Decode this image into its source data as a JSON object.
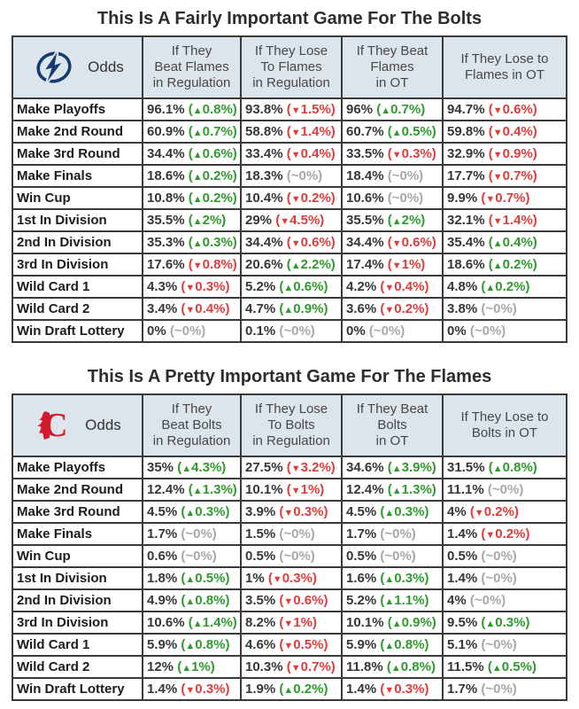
{
  "colors": {
    "increase_green": "#2f9b2f",
    "decrease_red": "#e13c3c",
    "no_change_gray": "#a8a8a8",
    "header_background": "#dce5ec",
    "table_border": "#3a3a3a",
    "bolts_logo_navy": "#173a70",
    "flames_logo_red": "#d31a2a"
  },
  "chart_data": [
    {
      "type": "table",
      "team": "Bolts",
      "title": "This Is A Fairly Important Game For The Bolts",
      "odds_label": "Odds",
      "logo_icon": "lightning-logo",
      "columns": [
        "If They\nBeat Flames\nin Regulation",
        "If They Lose\nTo Flames\nin Regulation",
        "If They Beat\nFlames\nin OT",
        "If They Lose to\nFlames in OT"
      ],
      "rows": [
        {
          "label": "Make Playoffs",
          "cells": [
            {
              "v": "96.1%",
              "c": "0.8%",
              "d": "up"
            },
            {
              "v": "93.8%",
              "c": "1.5%",
              "d": "down"
            },
            {
              "v": "96%",
              "c": "0.7%",
              "d": "up"
            },
            {
              "v": "94.7%",
              "c": "0.6%",
              "d": "down"
            }
          ]
        },
        {
          "label": "Make 2nd Round",
          "cells": [
            {
              "v": "60.9%",
              "c": "0.7%",
              "d": "up"
            },
            {
              "v": "58.8%",
              "c": "1.4%",
              "d": "down"
            },
            {
              "v": "60.7%",
              "c": "0.5%",
              "d": "up"
            },
            {
              "v": "59.8%",
              "c": "0.4%",
              "d": "down"
            }
          ]
        },
        {
          "label": "Make 3rd Round",
          "cells": [
            {
              "v": "34.4%",
              "c": "0.6%",
              "d": "up"
            },
            {
              "v": "33.4%",
              "c": "0.4%",
              "d": "down"
            },
            {
              "v": "33.5%",
              "c": "0.3%",
              "d": "down"
            },
            {
              "v": "32.9%",
              "c": "0.9%",
              "d": "down"
            }
          ]
        },
        {
          "label": "Make Finals",
          "cells": [
            {
              "v": "18.6%",
              "c": "0.2%",
              "d": "up"
            },
            {
              "v": "18.3%",
              "c": "0%",
              "d": "flat"
            },
            {
              "v": "18.4%",
              "c": "0%",
              "d": "flat"
            },
            {
              "v": "17.7%",
              "c": "0.7%",
              "d": "down"
            }
          ]
        },
        {
          "label": "Win Cup",
          "cells": [
            {
              "v": "10.8%",
              "c": "0.2%",
              "d": "up"
            },
            {
              "v": "10.4%",
              "c": "0.2%",
              "d": "down"
            },
            {
              "v": "10.6%",
              "c": "0%",
              "d": "flat"
            },
            {
              "v": "9.9%",
              "c": "0.7%",
              "d": "down"
            }
          ]
        },
        {
          "label": "1st In Division",
          "cells": [
            {
              "v": "35.5%",
              "c": "2%",
              "d": "up"
            },
            {
              "v": "29%",
              "c": "4.5%",
              "d": "down"
            },
            {
              "v": "35.5%",
              "c": "2%",
              "d": "up"
            },
            {
              "v": "32.1%",
              "c": "1.4%",
              "d": "down"
            }
          ]
        },
        {
          "label": "2nd In Division",
          "cells": [
            {
              "v": "35.3%",
              "c": "0.3%",
              "d": "up"
            },
            {
              "v": "34.4%",
              "c": "0.6%",
              "d": "down"
            },
            {
              "v": "34.4%",
              "c": "0.6%",
              "d": "down"
            },
            {
              "v": "35.4%",
              "c": "0.4%",
              "d": "up"
            }
          ]
        },
        {
          "label": "3rd In Division",
          "cells": [
            {
              "v": "17.6%",
              "c": "0.8%",
              "d": "down"
            },
            {
              "v": "20.6%",
              "c": "2.2%",
              "d": "up"
            },
            {
              "v": "17.4%",
              "c": "1%",
              "d": "down"
            },
            {
              "v": "18.6%",
              "c": "0.2%",
              "d": "up"
            }
          ]
        },
        {
          "label": "Wild Card 1",
          "cells": [
            {
              "v": "4.3%",
              "c": "0.3%",
              "d": "down"
            },
            {
              "v": "5.2%",
              "c": "0.6%",
              "d": "up"
            },
            {
              "v": "4.2%",
              "c": "0.4%",
              "d": "down"
            },
            {
              "v": "4.8%",
              "c": "0.2%",
              "d": "up"
            }
          ]
        },
        {
          "label": "Wild Card 2",
          "cells": [
            {
              "v": "3.4%",
              "c": "0.4%",
              "d": "down"
            },
            {
              "v": "4.7%",
              "c": "0.9%",
              "d": "up"
            },
            {
              "v": "3.6%",
              "c": "0.2%",
              "d": "down"
            },
            {
              "v": "3.8%",
              "c": "0%",
              "d": "flat"
            }
          ]
        },
        {
          "label": "Win Draft Lottery",
          "cells": [
            {
              "v": "0%",
              "c": "0%",
              "d": "flat"
            },
            {
              "v": "0.1%",
              "c": "0%",
              "d": "flat"
            },
            {
              "v": "0%",
              "c": "0%",
              "d": "flat"
            },
            {
              "v": "0%",
              "c": "0%",
              "d": "flat"
            }
          ]
        }
      ]
    },
    {
      "type": "table",
      "team": "Flames",
      "title": "This Is A Pretty Important Game For The Flames",
      "odds_label": "Odds",
      "logo_icon": "flames-logo",
      "columns": [
        "If They\nBeat Bolts\nin Regulation",
        "If They Lose\nTo Bolts\nin Regulation",
        "If They Beat\nBolts\nin OT",
        "If They Lose to\nBolts in OT"
      ],
      "rows": [
        {
          "label": "Make Playoffs",
          "cells": [
            {
              "v": "35%",
              "c": "4.3%",
              "d": "up"
            },
            {
              "v": "27.5%",
              "c": "3.2%",
              "d": "down"
            },
            {
              "v": "34.6%",
              "c": "3.9%",
              "d": "up"
            },
            {
              "v": "31.5%",
              "c": "0.8%",
              "d": "up"
            }
          ]
        },
        {
          "label": "Make 2nd Round",
          "cells": [
            {
              "v": "12.4%",
              "c": "1.3%",
              "d": "up"
            },
            {
              "v": "10.1%",
              "c": "1%",
              "d": "down"
            },
            {
              "v": "12.4%",
              "c": "1.3%",
              "d": "up"
            },
            {
              "v": "11.1%",
              "c": "0%",
              "d": "flat"
            }
          ]
        },
        {
          "label": "Make 3rd Round",
          "cells": [
            {
              "v": "4.5%",
              "c": "0.3%",
              "d": "up"
            },
            {
              "v": "3.9%",
              "c": "0.3%",
              "d": "down"
            },
            {
              "v": "4.5%",
              "c": "0.3%",
              "d": "up"
            },
            {
              "v": "4%",
              "c": "0.2%",
              "d": "down"
            }
          ]
        },
        {
          "label": "Make Finals",
          "cells": [
            {
              "v": "1.7%",
              "c": "0%",
              "d": "flat"
            },
            {
              "v": "1.5%",
              "c": "0%",
              "d": "flat"
            },
            {
              "v": "1.7%",
              "c": "0%",
              "d": "flat"
            },
            {
              "v": "1.4%",
              "c": "0.2%",
              "d": "down"
            }
          ]
        },
        {
          "label": "Win Cup",
          "cells": [
            {
              "v": "0.6%",
              "c": "0%",
              "d": "flat"
            },
            {
              "v": "0.5%",
              "c": "0%",
              "d": "flat"
            },
            {
              "v": "0.5%",
              "c": "0%",
              "d": "flat"
            },
            {
              "v": "0.5%",
              "c": "0%",
              "d": "flat"
            }
          ]
        },
        {
          "label": "1st In Division",
          "cells": [
            {
              "v": "1.8%",
              "c": "0.5%",
              "d": "up"
            },
            {
              "v": "1%",
              "c": "0.3%",
              "d": "down"
            },
            {
              "v": "1.6%",
              "c": "0.3%",
              "d": "up"
            },
            {
              "v": "1.4%",
              "c": "0%",
              "d": "flat"
            }
          ]
        },
        {
          "label": "2nd In Division",
          "cells": [
            {
              "v": "4.9%",
              "c": "0.8%",
              "d": "up"
            },
            {
              "v": "3.5%",
              "c": "0.6%",
              "d": "down"
            },
            {
              "v": "5.2%",
              "c": "1.1%",
              "d": "up"
            },
            {
              "v": "4%",
              "c": "0%",
              "d": "flat"
            }
          ]
        },
        {
          "label": "3rd In Division",
          "cells": [
            {
              "v": "10.6%",
              "c": "1.4%",
              "d": "up"
            },
            {
              "v": "8.2%",
              "c": "1%",
              "d": "down"
            },
            {
              "v": "10.1%",
              "c": "0.9%",
              "d": "up"
            },
            {
              "v": "9.5%",
              "c": "0.3%",
              "d": "up"
            }
          ]
        },
        {
          "label": "Wild Card 1",
          "cells": [
            {
              "v": "5.9%",
              "c": "0.8%",
              "d": "up"
            },
            {
              "v": "4.6%",
              "c": "0.5%",
              "d": "down"
            },
            {
              "v": "5.9%",
              "c": "0.8%",
              "d": "up"
            },
            {
              "v": "5.1%",
              "c": "0%",
              "d": "flat"
            }
          ]
        },
        {
          "label": "Wild Card 2",
          "cells": [
            {
              "v": "12%",
              "c": "1%",
              "d": "up"
            },
            {
              "v": "10.3%",
              "c": "0.7%",
              "d": "down"
            },
            {
              "v": "11.8%",
              "c": "0.8%",
              "d": "up"
            },
            {
              "v": "11.5%",
              "c": "0.5%",
              "d": "up"
            }
          ]
        },
        {
          "label": "Win Draft Lottery",
          "cells": [
            {
              "v": "1.4%",
              "c": "0.3%",
              "d": "down"
            },
            {
              "v": "1.9%",
              "c": "0.2%",
              "d": "up"
            },
            {
              "v": "1.4%",
              "c": "0.3%",
              "d": "down"
            },
            {
              "v": "1.7%",
              "c": "0%",
              "d": "flat"
            }
          ]
        }
      ]
    }
  ]
}
